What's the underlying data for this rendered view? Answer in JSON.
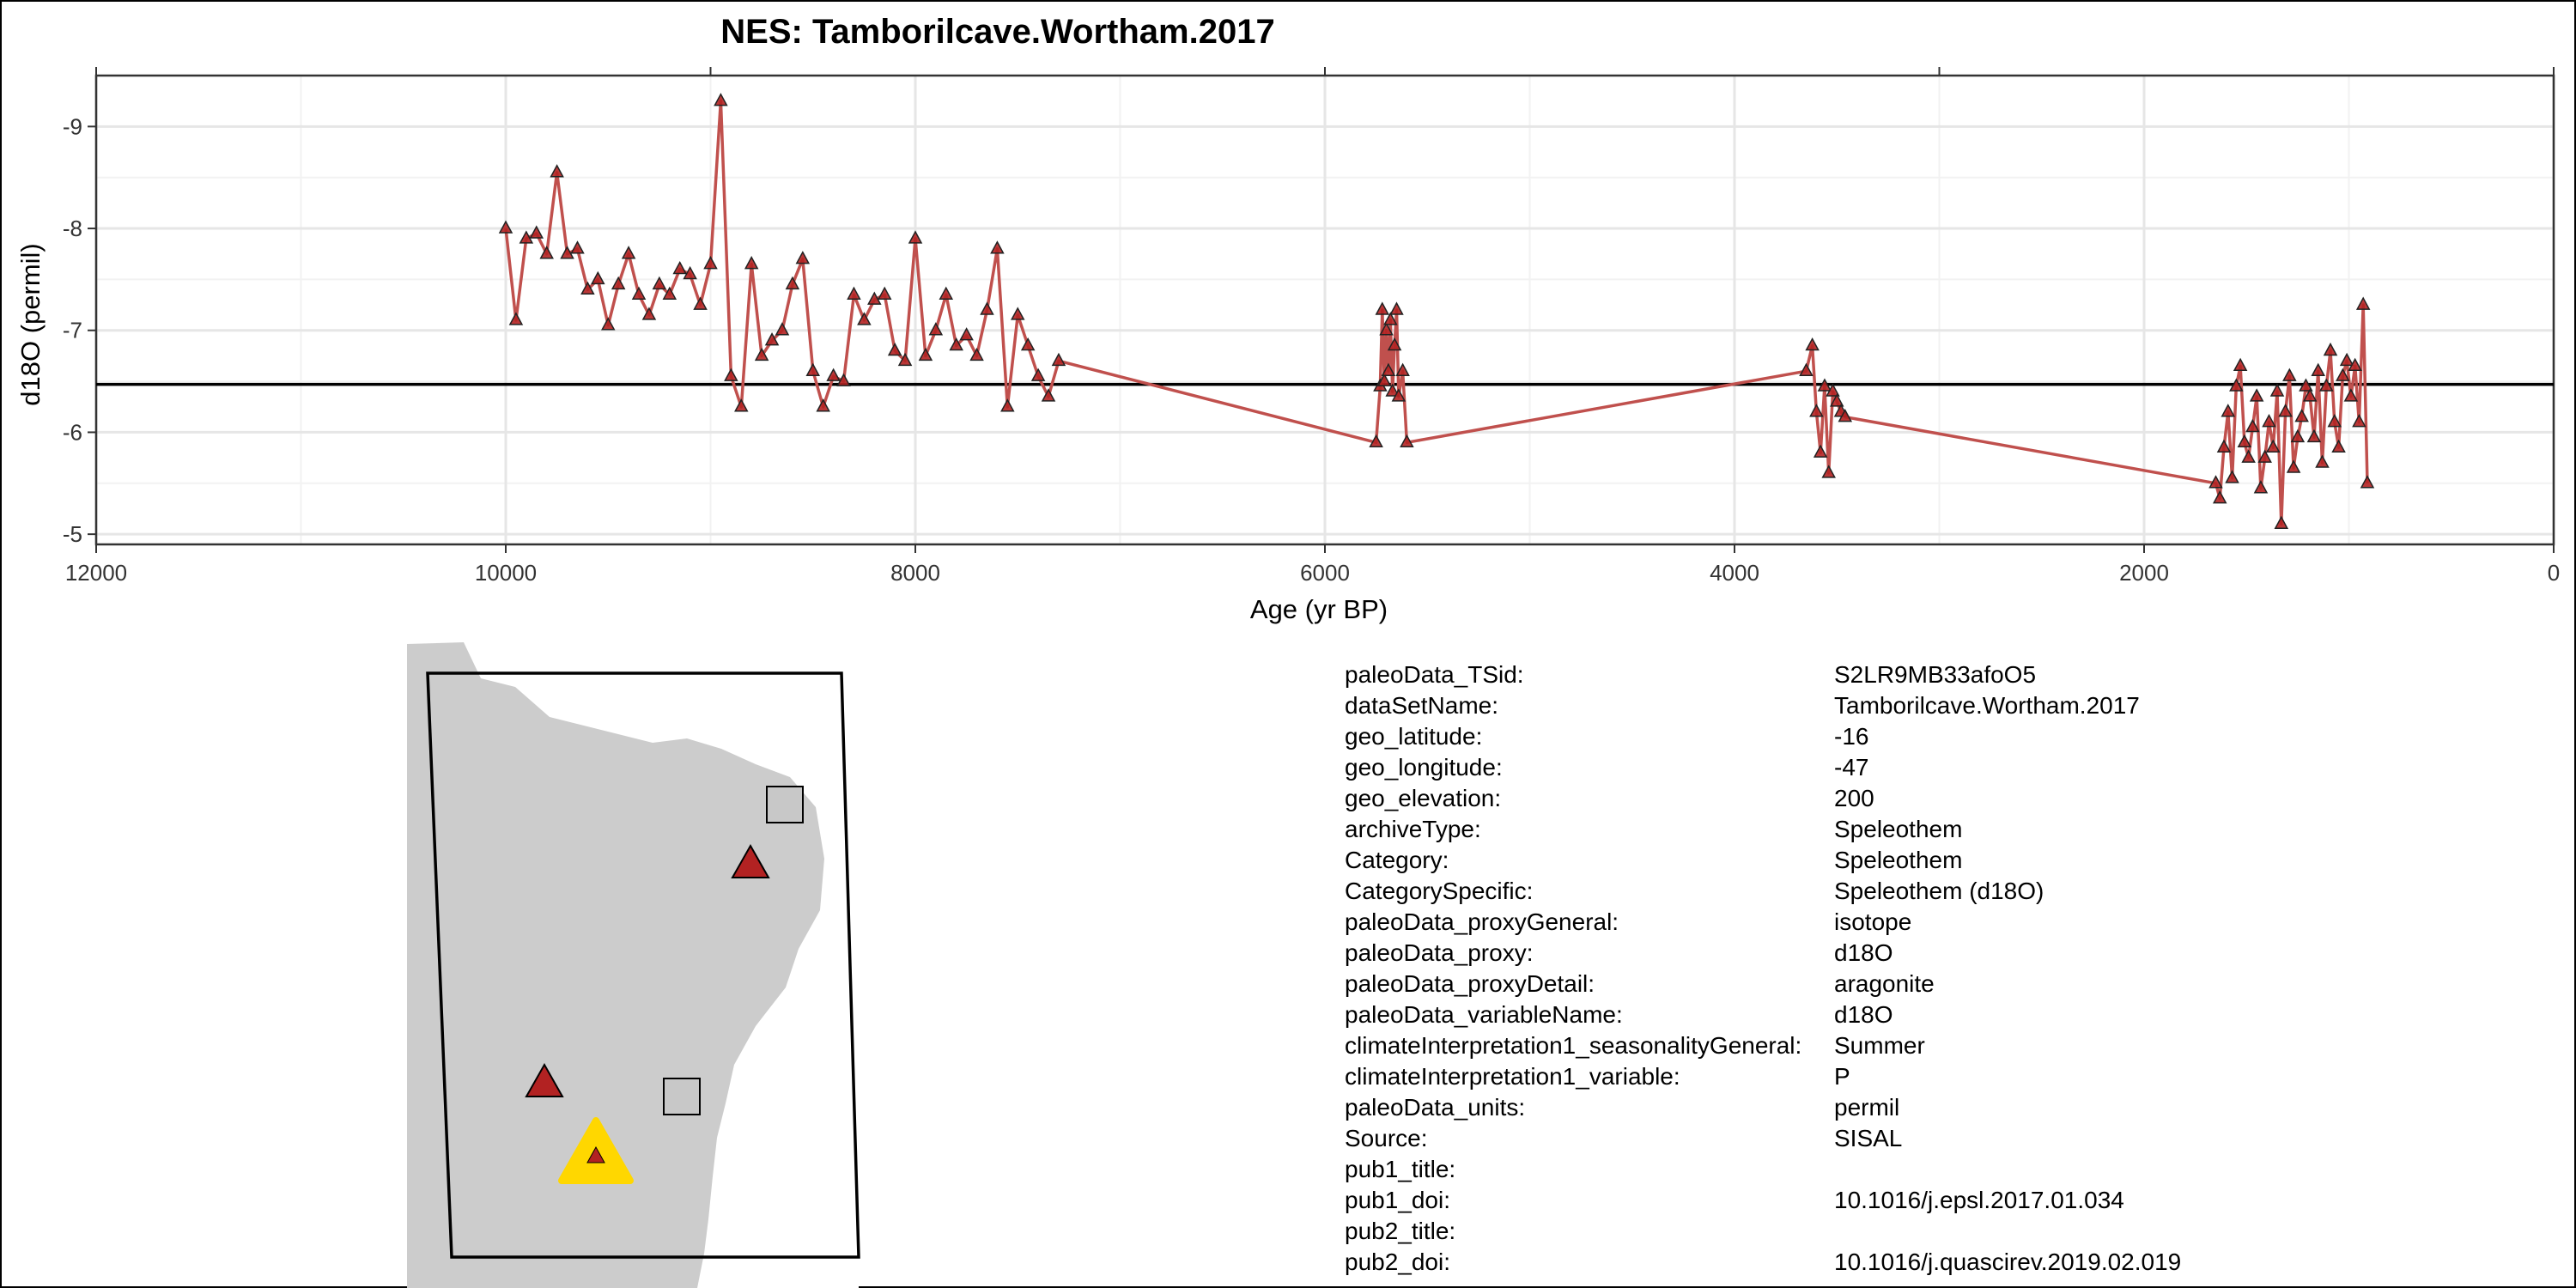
{
  "chart_data": {
    "type": "line",
    "title": "NES: Tamborilcave.Wortham.2017",
    "xlabel": "Age (yr BP)",
    "ylabel": "d18O (permil)",
    "xlim": [
      12000,
      0
    ],
    "ylim": [
      -9.5,
      -4.9
    ],
    "y_reversed": true,
    "x_reversed": true,
    "x_ticks": [
      12000,
      10000,
      8000,
      6000,
      4000,
      2000,
      0
    ],
    "y_ticks": [
      -9,
      -8,
      -7,
      -6,
      -5
    ],
    "grid": true,
    "marker": "triangle",
    "line_color": "#C0504D",
    "marker_color": "#B22222",
    "mean_line": -6.47,
    "series": [
      {
        "x": [
          10000,
          9950,
          9900,
          9850,
          9800,
          9750,
          9700,
          9650,
          9600,
          9550,
          9500,
          9450,
          9400,
          9350,
          9300,
          9250,
          9200,
          9150,
          9100,
          9050,
          9000,
          8950,
          8900,
          8850,
          8800,
          8750,
          8700,
          8650,
          8600,
          8550,
          8500,
          8450,
          8400,
          8350,
          8300,
          8250,
          8200,
          8150,
          8100,
          8050,
          8000,
          7950,
          7900,
          7850,
          7800,
          7750,
          7700,
          7650,
          7600,
          7550,
          7500,
          7450,
          7400,
          7350,
          7300,
          5750,
          5730,
          5720,
          5710,
          5700,
          5690,
          5680,
          5670,
          5660,
          5650,
          5640,
          5620,
          5600,
          3650,
          3620,
          3600,
          3580,
          3560,
          3540,
          3520,
          3500,
          3480,
          3460,
          1650,
          1630,
          1610,
          1590,
          1570,
          1550,
          1530,
          1510,
          1490,
          1470,
          1450,
          1430,
          1410,
          1390,
          1370,
          1350,
          1330,
          1310,
          1290,
          1270,
          1250,
          1230,
          1210,
          1190,
          1170,
          1150,
          1130,
          1110,
          1090,
          1070,
          1050,
          1030,
          1010,
          990,
          970,
          950,
          930,
          910
        ],
        "y": [
          -8.0,
          -7.1,
          -7.9,
          -7.95,
          -7.75,
          -8.55,
          -7.75,
          -7.8,
          -7.4,
          -7.5,
          -7.05,
          -7.45,
          -7.75,
          -7.35,
          -7.15,
          -7.45,
          -7.35,
          -7.6,
          -7.55,
          -7.25,
          -7.65,
          -9.25,
          -6.55,
          -6.25,
          -7.65,
          -6.75,
          -6.9,
          -7.0,
          -7.45,
          -7.7,
          -6.6,
          -6.25,
          -6.55,
          -6.5,
          -7.35,
          -7.1,
          -7.3,
          -7.35,
          -6.8,
          -6.7,
          -7.9,
          -6.75,
          -7.0,
          -7.35,
          -6.85,
          -6.95,
          -6.75,
          -7.2,
          -7.8,
          -6.25,
          -7.15,
          -6.85,
          -6.55,
          -6.35,
          -6.7,
          -5.9,
          -6.45,
          -7.2,
          -6.5,
          -7.0,
          -6.6,
          -7.1,
          -6.4,
          -6.85,
          -7.2,
          -6.35,
          -6.6,
          -5.9,
          -6.6,
          -6.85,
          -6.2,
          -5.8,
          -6.45,
          -5.6,
          -6.4,
          -6.3,
          -6.2,
          -6.15,
          -5.5,
          -5.35,
          -5.85,
          -6.2,
          -5.55,
          -6.45,
          -6.65,
          -5.9,
          -5.75,
          -6.05,
          -6.35,
          -5.45,
          -5.75,
          -6.1,
          -5.85,
          -6.4,
          -5.1,
          -6.2,
          -6.55,
          -5.65,
          -5.95,
          -6.15,
          -6.45,
          -6.35,
          -5.95,
          -6.6,
          -5.7,
          -6.45,
          -6.8,
          -6.1,
          -5.85,
          -6.55,
          -6.7,
          -6.35,
          -6.65,
          -6.1,
          -7.25,
          -5.5
        ]
      }
    ]
  },
  "map": {
    "markers": [
      {
        "kind": "square",
        "color": "#C8C8C8",
        "lon": -36,
        "lat": -4
      },
      {
        "kind": "triangle",
        "color": "#B22222",
        "lon": -38,
        "lat": -6
      },
      {
        "kind": "triangle",
        "color": "#B22222",
        "lon": -50,
        "lat": -13.5
      },
      {
        "kind": "square",
        "color": "#C8C8C8",
        "lon": -42,
        "lat": -14
      },
      {
        "kind": "highlight-triangle",
        "color": "#FFD700",
        "lon": -47,
        "lat": -16
      }
    ]
  },
  "metadata": [
    {
      "key": "paleoData_TSid:",
      "value": "S2LR9MB33afoO5"
    },
    {
      "key": "dataSetName:",
      "value": "Tamborilcave.Wortham.2017"
    },
    {
      "key": "geo_latitude:",
      "value": "-16"
    },
    {
      "key": "geo_longitude:",
      "value": "-47"
    },
    {
      "key": "geo_elevation:",
      "value": "200"
    },
    {
      "key": "archiveType:",
      "value": "Speleothem"
    },
    {
      "key": "Category:",
      "value": "Speleothem"
    },
    {
      "key": "CategorySpecific:",
      "value": "Speleothem (d18O)"
    },
    {
      "key": "paleoData_proxyGeneral:",
      "value": "isotope"
    },
    {
      "key": "paleoData_proxy:",
      "value": "d18O"
    },
    {
      "key": "paleoData_proxyDetail:",
      "value": "aragonite"
    },
    {
      "key": "paleoData_variableName:",
      "value": "d18O"
    },
    {
      "key": "climateInterpretation1_seasonalityGeneral:",
      "value": "Summer"
    },
    {
      "key": "climateInterpretation1_variable:",
      "value": "P"
    },
    {
      "key": "paleoData_units:",
      "value": "permil"
    },
    {
      "key": "Source:",
      "value": "SISAL"
    },
    {
      "key": "pub1_title:",
      "value": ""
    },
    {
      "key": "pub1_doi:",
      "value": "10.1016/j.epsl.2017.01.034"
    },
    {
      "key": "pub2_title:",
      "value": ""
    },
    {
      "key": "pub2_doi:",
      "value": "10.1016/j.quascirev.2019.02.019"
    }
  ]
}
